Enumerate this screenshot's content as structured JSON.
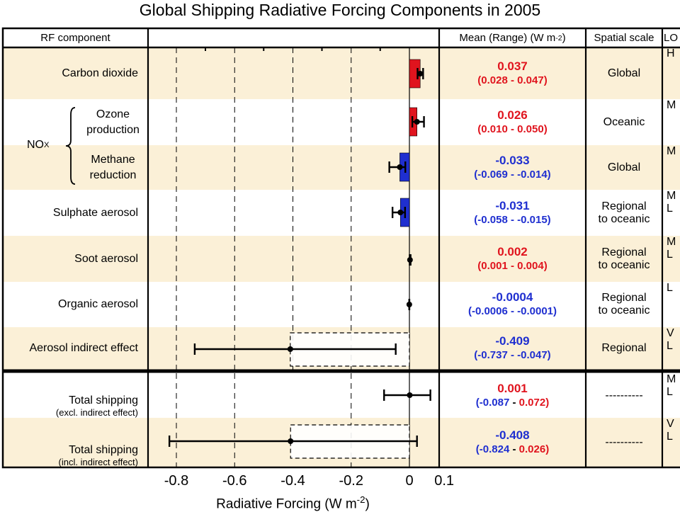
{
  "title": "Global Shipping Radiative Forcing Components in 2005",
  "headers": {
    "component": "RF component",
    "mean_range": "Mean (Range) (W m",
    "mean_range_sup": "-2",
    "mean_range_end": ")",
    "spatial": "Spatial scale",
    "losu": "LO"
  },
  "nox_label": "NO",
  "nox_sub": "X",
  "rows": [
    {
      "label": "Carbon dioxide",
      "mean": "0.037",
      "range": "(0.028 - 0.047)",
      "mean_color": "red",
      "range_color": "red",
      "scale": "Global",
      "losu": "H"
    },
    {
      "label": "Ozone production",
      "mean": "0.026",
      "range": "(0.010 - 0.050)",
      "mean_color": "red",
      "range_color": "red",
      "scale": "Oceanic",
      "losu": "M"
    },
    {
      "label": "Methane reduction",
      "mean": "-0.033",
      "range": "(-0.069 - -0.014)",
      "mean_color": "blue",
      "range_color": "blue",
      "scale": "Global",
      "losu": "M"
    },
    {
      "label": "Sulphate aerosol",
      "mean": "-0.031",
      "range": "(-0.058 - -0.015)",
      "mean_color": "blue",
      "range_color": "blue",
      "scale": "Regional to oceanic",
      "losu": "M L"
    },
    {
      "label": "Soot aerosol",
      "mean": "0.002",
      "range": "(0.001 - 0.004)",
      "mean_color": "red",
      "range_color": "red",
      "scale": "Regional to oceanic",
      "losu": "M L"
    },
    {
      "label": "Organic aerosol",
      "mean": "-0.0004",
      "range": "(-0.0006 - -0.0001)",
      "mean_color": "blue",
      "range_color": "blue",
      "scale": "Regional to oceanic",
      "losu": "L"
    },
    {
      "label": "Aerosol indirect effect",
      "mean": "-0.409",
      "range": "(-0.737 - -0.047)",
      "mean_color": "blue",
      "range_color": "blue",
      "scale": "Regional",
      "losu": "V L"
    }
  ],
  "totals": [
    {
      "label": "Total shipping",
      "sublabel": "(excl. indirect effect)",
      "mean": "0.001",
      "mean_color": "red",
      "range_low": "(-0.087",
      "range_sep": " - ",
      "range_high": "0.072)",
      "scale": "----------",
      "losu": "M L"
    },
    {
      "label": "Total shipping",
      "sublabel": "(incl. indirect effect)",
      "mean": "-0.408",
      "mean_color": "blue",
      "range_low": "(-0.824",
      "range_sep": " - ",
      "range_high": "0.026)",
      "scale": "----------",
      "losu": "V L"
    }
  ],
  "colors": {
    "red": "#e0141e",
    "blue": "#1f2fd0",
    "band": "#fbf0d7",
    "dashed": "#000000"
  },
  "chart_data": {
    "type": "bar",
    "orientation": "horizontal",
    "categories": [
      "Carbon dioxide",
      "Ozone production",
      "Methane reduction",
      "Sulphate aerosol",
      "Soot aerosol",
      "Organic aerosol",
      "Aerosol indirect effect",
      "Total shipping (excl. indirect effect)",
      "Total shipping (incl. indirect effect)"
    ],
    "values": [
      0.037,
      0.026,
      -0.033,
      -0.031,
      0.002,
      -0.0004,
      -0.409,
      0.001,
      -0.408
    ],
    "low": [
      0.028,
      0.01,
      -0.069,
      -0.058,
      0.001,
      -0.0006,
      -0.737,
      -0.087,
      -0.824
    ],
    "high": [
      0.047,
      0.05,
      -0.014,
      -0.015,
      0.004,
      -0.0001,
      -0.047,
      0.072,
      0.026
    ],
    "bar_shown": [
      true,
      true,
      true,
      true,
      false,
      false,
      false,
      false,
      false
    ],
    "dashed_box": [
      false,
      false,
      false,
      false,
      false,
      false,
      true,
      false,
      true
    ],
    "xlabel": "Radiative Forcing  (W m",
    "xlabel_sup": "-2",
    "xlabel_end": ")",
    "xticks": [
      "-0.8",
      "-0.6",
      "-0.4",
      "-0.2",
      "0",
      "0.1"
    ],
    "xtick_values": [
      -0.8,
      -0.6,
      -0.4,
      -0.2,
      0,
      0.1
    ],
    "xlim": [
      -0.89,
      0.1
    ],
    "grid": "dashed vertical at -0.8, -0.6, -0.4, -0.2"
  }
}
